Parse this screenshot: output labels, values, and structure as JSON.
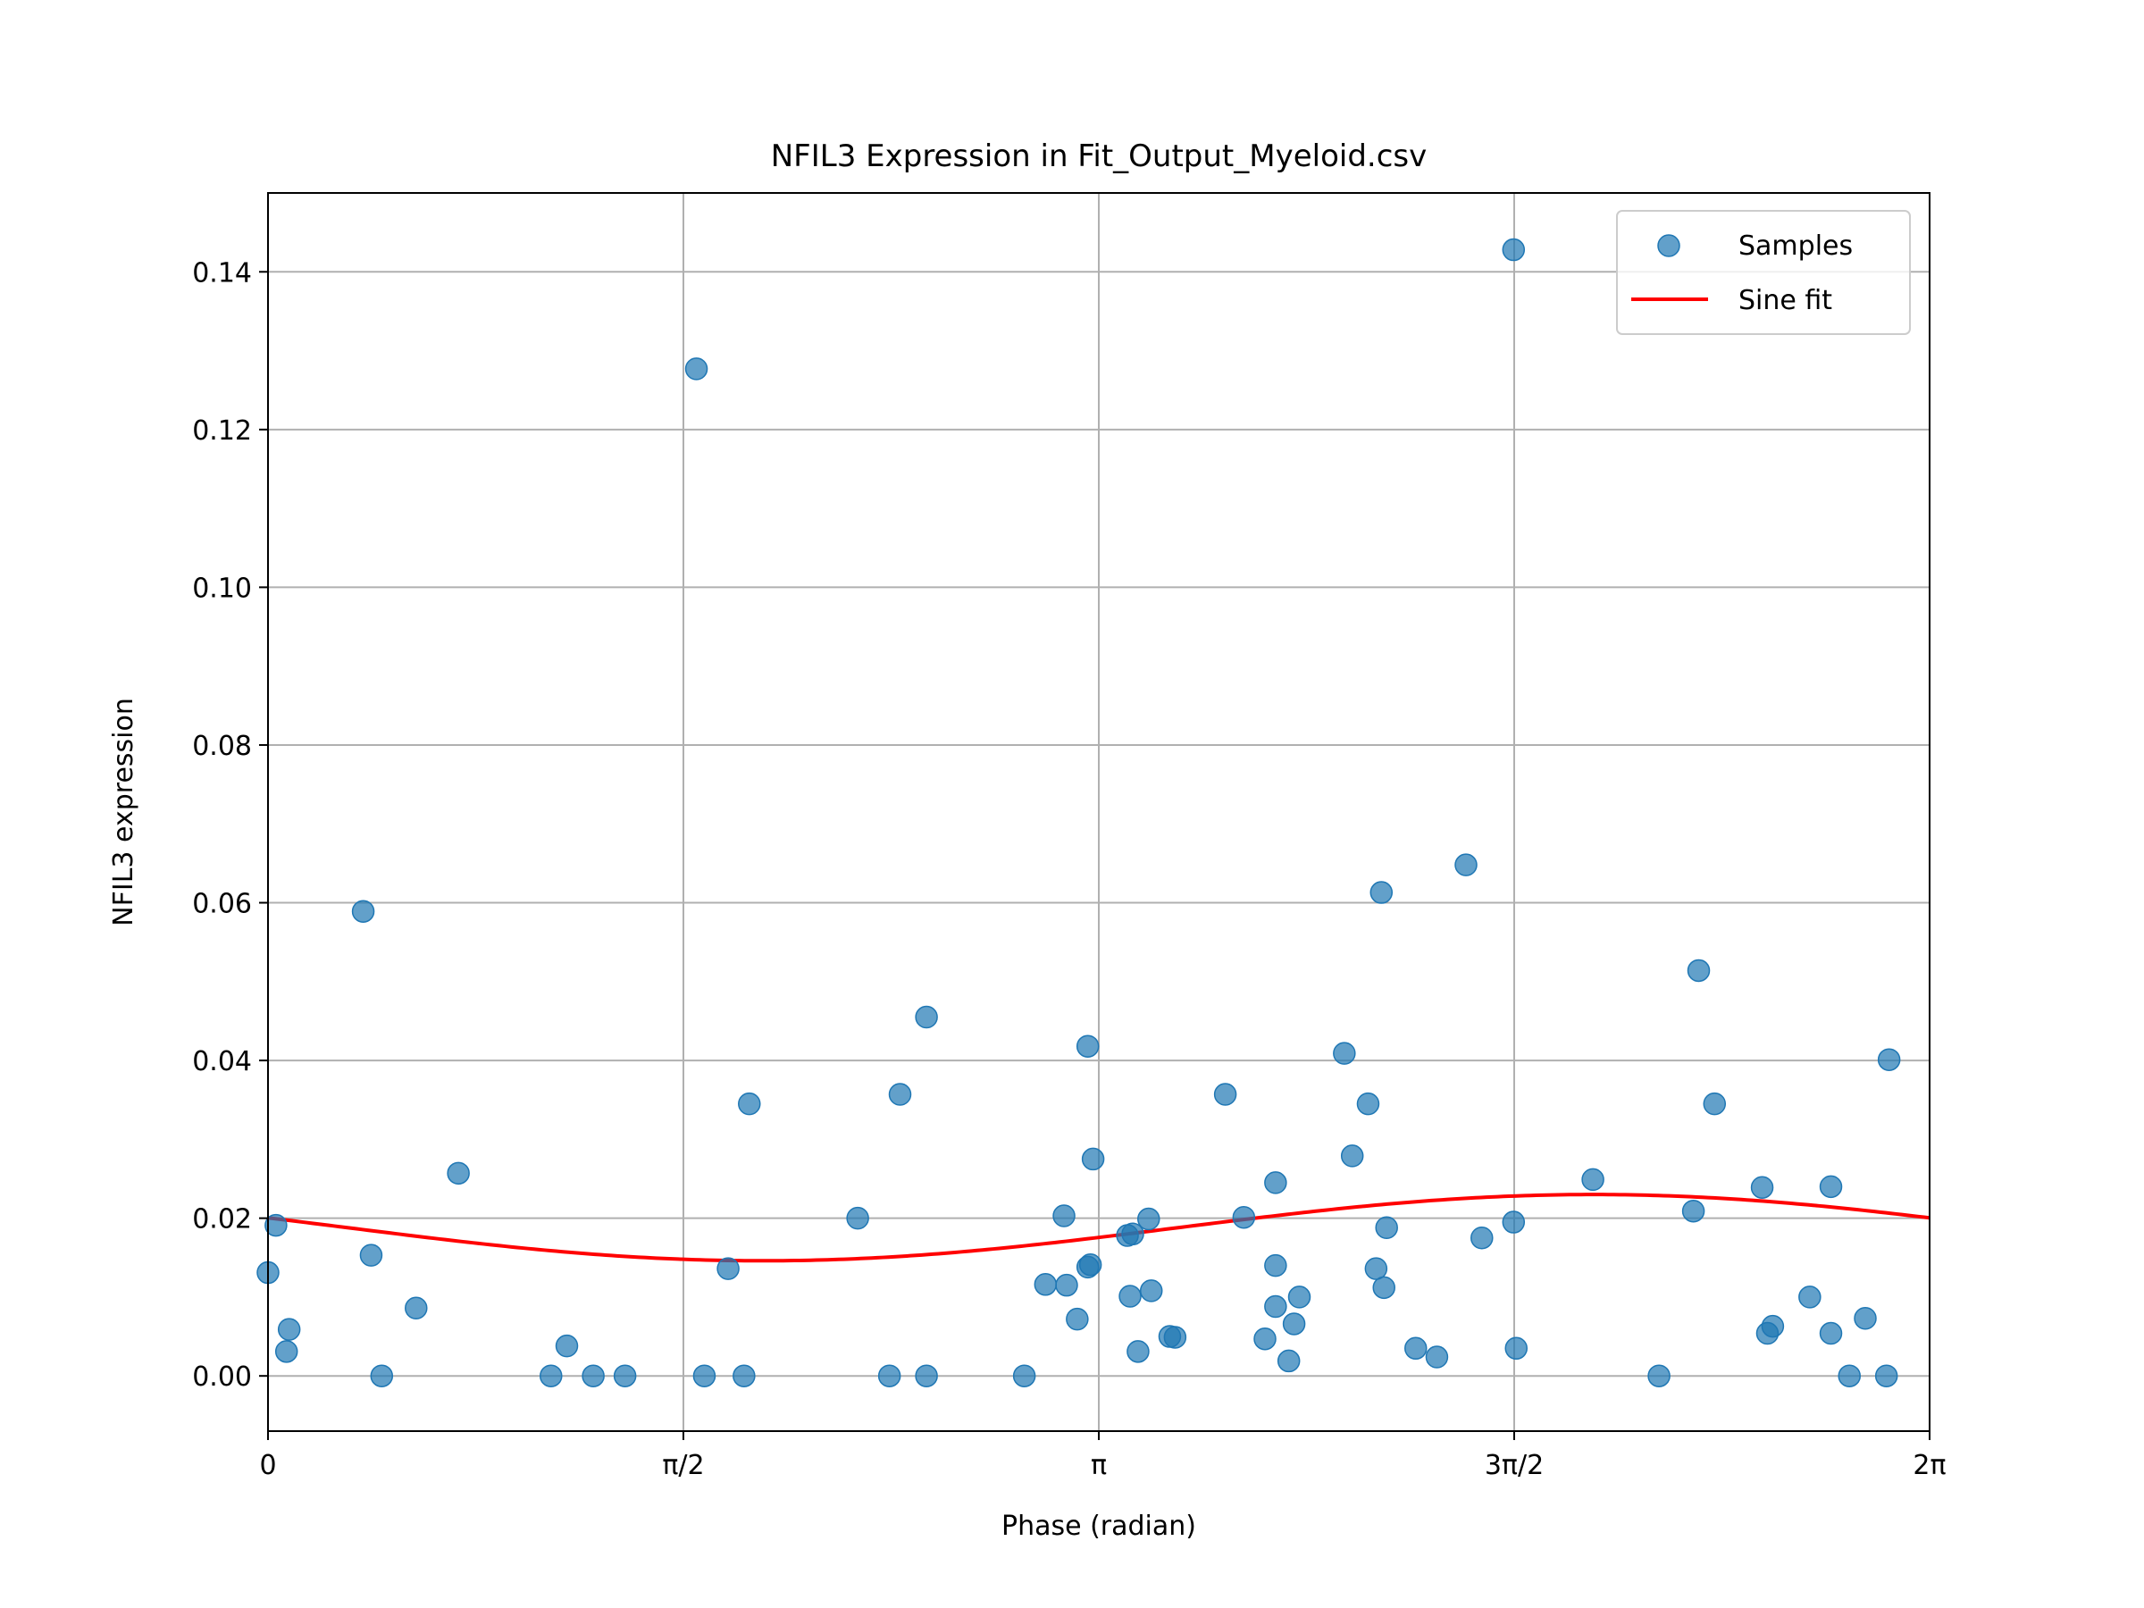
{
  "chart_data": {
    "type": "scatter",
    "title": "NFIL3 Expression in Fit_Output_Myeloid.csv",
    "xlabel": "Phase (radian)",
    "ylabel": "NFIL3 expression",
    "xlim": [
      0,
      6.2832
    ],
    "ylim": [
      -0.007,
      0.15
    ],
    "grid": true,
    "legend_position": "top-right",
    "xticks": [
      {
        "value": 0,
        "label": "0"
      },
      {
        "value": 1.5708,
        "label": "π/2"
      },
      {
        "value": 3.1416,
        "label": "π"
      },
      {
        "value": 4.7124,
        "label": "3π/2"
      },
      {
        "value": 6.2832,
        "label": "2π"
      }
    ],
    "yticks": [
      {
        "value": 0.0,
        "label": "0.00"
      },
      {
        "value": 0.02,
        "label": "0.02"
      },
      {
        "value": 0.04,
        "label": "0.04"
      },
      {
        "value": 0.06,
        "label": "0.06"
      },
      {
        "value": 0.08,
        "label": "0.08"
      },
      {
        "value": 0.1,
        "label": "0.10"
      },
      {
        "value": 0.12,
        "label": "0.12"
      },
      {
        "value": 0.14,
        "label": "0.14"
      }
    ],
    "colors": {
      "samples": "#1f77b4",
      "fit": "#ff0000"
    },
    "series": [
      {
        "name": "Samples",
        "kind": "scatter",
        "points": [
          [
            0.0,
            0.0131
          ],
          [
            0.03,
            0.0191
          ],
          [
            0.07,
            0.0031
          ],
          [
            0.08,
            0.0059
          ],
          [
            0.36,
            0.0589
          ],
          [
            0.39,
            0.0153
          ],
          [
            0.43,
            0.0
          ],
          [
            0.56,
            0.0086
          ],
          [
            0.72,
            0.0257
          ],
          [
            1.07,
            0.0
          ],
          [
            1.13,
            0.0038
          ],
          [
            1.23,
            0.0
          ],
          [
            1.35,
            0.0
          ],
          [
            1.62,
            0.1277
          ],
          [
            1.65,
            0.0
          ],
          [
            1.74,
            0.0136
          ],
          [
            1.8,
            0.0
          ],
          [
            1.82,
            0.0345
          ],
          [
            2.23,
            0.02
          ],
          [
            2.35,
            0.0
          ],
          [
            2.39,
            0.0357
          ],
          [
            2.49,
            0.0455
          ],
          [
            2.49,
            0.0
          ],
          [
            2.86,
            0.0
          ],
          [
            2.94,
            0.0116
          ],
          [
            3.01,
            0.0203
          ],
          [
            3.02,
            0.0115
          ],
          [
            3.06,
            0.0072
          ],
          [
            3.1,
            0.0418
          ],
          [
            3.1,
            0.0138
          ],
          [
            3.11,
            0.0141
          ],
          [
            3.12,
            0.0275
          ],
          [
            3.25,
            0.0178
          ],
          [
            3.26,
            0.0101
          ],
          [
            3.27,
            0.018
          ],
          [
            3.29,
            0.0031
          ],
          [
            3.33,
            0.0199
          ],
          [
            3.34,
            0.0108
          ],
          [
            3.41,
            0.005
          ],
          [
            3.43,
            0.0049
          ],
          [
            3.62,
            0.0357
          ],
          [
            3.69,
            0.0201
          ],
          [
            3.77,
            0.0047
          ],
          [
            3.81,
            0.014
          ],
          [
            3.81,
            0.0245
          ],
          [
            3.81,
            0.0088
          ],
          [
            3.86,
            0.0019
          ],
          [
            3.88,
            0.0066
          ],
          [
            3.9,
            0.01
          ],
          [
            4.07,
            0.0409
          ],
          [
            4.1,
            0.0279
          ],
          [
            4.16,
            0.0345
          ],
          [
            4.19,
            0.0136
          ],
          [
            4.21,
            0.0613
          ],
          [
            4.22,
            0.0112
          ],
          [
            4.23,
            0.0188
          ],
          [
            4.34,
            0.0035
          ],
          [
            4.42,
            0.0024
          ],
          [
            4.53,
            0.0648
          ],
          [
            4.59,
            0.0175
          ],
          [
            4.71,
            0.0195
          ],
          [
            4.71,
            0.1428
          ],
          [
            4.72,
            0.0035
          ],
          [
            5.01,
            0.0249
          ],
          [
            5.26,
            0.0
          ],
          [
            5.39,
            0.0209
          ],
          [
            5.41,
            0.0514
          ],
          [
            5.47,
            0.0345
          ],
          [
            5.65,
            0.0239
          ],
          [
            5.67,
            0.0054
          ],
          [
            5.69,
            0.0063
          ],
          [
            5.83,
            0.01
          ],
          [
            5.91,
            0.0054
          ],
          [
            5.91,
            0.024
          ],
          [
            5.98,
            0.0
          ],
          [
            6.04,
            0.0073
          ],
          [
            6.12,
            0.0
          ],
          [
            6.13,
            0.0401
          ]
        ]
      },
      {
        "name": "Sine fit",
        "kind": "line",
        "model": "y = 0.0188 - 0.0042 * sin(x - 0.3)"
      }
    ]
  }
}
